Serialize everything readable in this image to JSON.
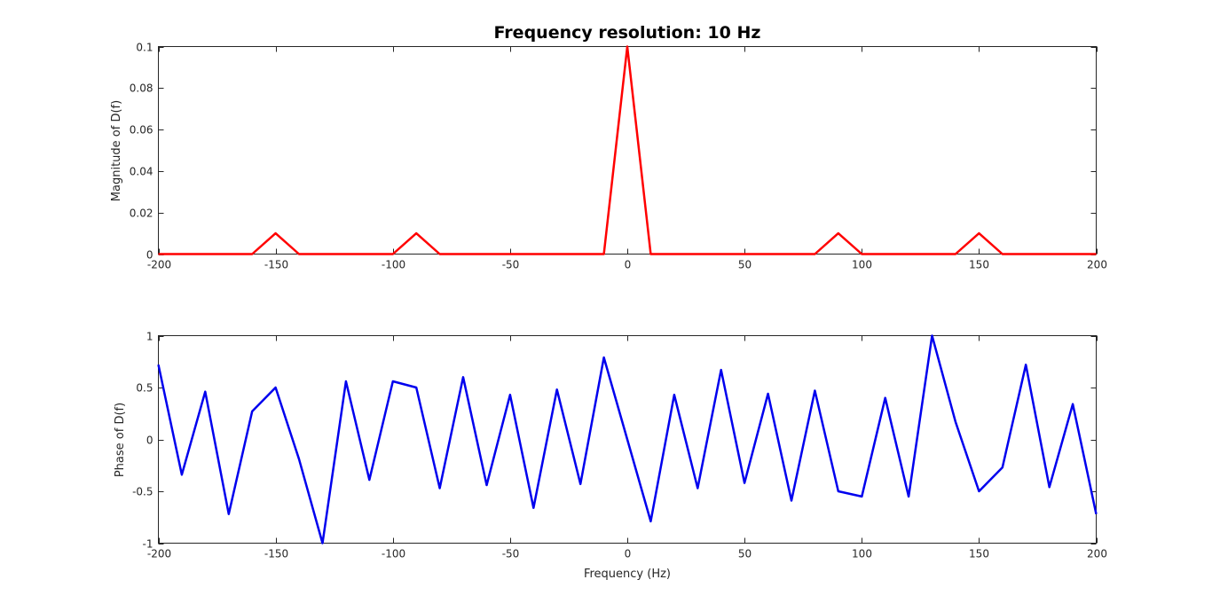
{
  "chart_data": [
    {
      "type": "line",
      "title": "Frequency resolution: 10 Hz",
      "xlabel": "",
      "ylabel": "Magnitude of D(f)",
      "xlim": [
        -200,
        200
      ],
      "ylim": [
        0,
        0.1
      ],
      "xticks": [
        -200,
        -150,
        -100,
        -50,
        0,
        50,
        100,
        150,
        200
      ],
      "yticks": [
        0,
        0.02,
        0.04,
        0.06,
        0.08,
        0.1
      ],
      "xtick_labels": [
        "-200",
        "-150",
        "-100",
        "-50",
        "0",
        "50",
        "100",
        "150",
        "200"
      ],
      "ytick_labels": [
        "0",
        "0.02",
        "0.04",
        "0.06",
        "0.08",
        "0.1"
      ],
      "grid": false,
      "color": "#ff0000",
      "x": [
        -200,
        -190,
        -180,
        -170,
        -160,
        -150,
        -140,
        -130,
        -120,
        -110,
        -100,
        -90,
        -80,
        -70,
        -60,
        -50,
        -40,
        -30,
        -20,
        -10,
        0,
        10,
        20,
        30,
        40,
        50,
        60,
        70,
        80,
        90,
        100,
        110,
        120,
        130,
        140,
        150,
        160,
        170,
        180,
        190,
        200
      ],
      "y": [
        0,
        0,
        0,
        0,
        0,
        0.01,
        0,
        0,
        0,
        0,
        0,
        0.01,
        0,
        0,
        0,
        0,
        0,
        0,
        0,
        0,
        0.1,
        0,
        0,
        0,
        0,
        0,
        0,
        0,
        0,
        0.01,
        0,
        0,
        0,
        0,
        0,
        0.01,
        0,
        0,
        0,
        0,
        0
      ]
    },
    {
      "type": "line",
      "title": "",
      "xlabel": "Frequency (Hz)",
      "ylabel": "Phase of D(f)",
      "xlim": [
        -200,
        200
      ],
      "ylim": [
        -1,
        1
      ],
      "xticks": [
        -200,
        -150,
        -100,
        -50,
        0,
        50,
        100,
        150,
        200
      ],
      "yticks": [
        -1,
        -0.5,
        0,
        0.5,
        1
      ],
      "xtick_labels": [
        "-200",
        "-150",
        "-100",
        "-50",
        "0",
        "50",
        "100",
        "150",
        "200"
      ],
      "ytick_labels": [
        "-1",
        "-0.5",
        "0",
        "0.5",
        "1"
      ],
      "grid": false,
      "color": "#0000ee",
      "x": [
        -200,
        -190,
        -180,
        -170,
        -160,
        -150,
        -140,
        -130,
        -120,
        -110,
        -100,
        -90,
        -80,
        -70,
        -60,
        -50,
        -40,
        -30,
        -20,
        -10,
        0,
        10,
        20,
        30,
        40,
        50,
        60,
        70,
        80,
        90,
        100,
        110,
        120,
        130,
        140,
        150,
        160,
        170,
        180,
        190,
        200
      ],
      "y": [
        0.72,
        -0.34,
        0.46,
        -0.72,
        0.27,
        0.5,
        -0.19,
        -1.0,
        0.56,
        -0.39,
        0.56,
        0.5,
        -0.47,
        0.6,
        -0.44,
        0.43,
        -0.66,
        0.48,
        -0.43,
        0.79,
        0.0,
        -0.79,
        0.43,
        -0.47,
        0.67,
        -0.42,
        0.44,
        -0.59,
        0.47,
        -0.5,
        -0.55,
        0.4,
        -0.55,
        1.0,
        0.17,
        -0.5,
        -0.27,
        0.72,
        -0.46,
        0.34,
        -0.72
      ]
    }
  ]
}
